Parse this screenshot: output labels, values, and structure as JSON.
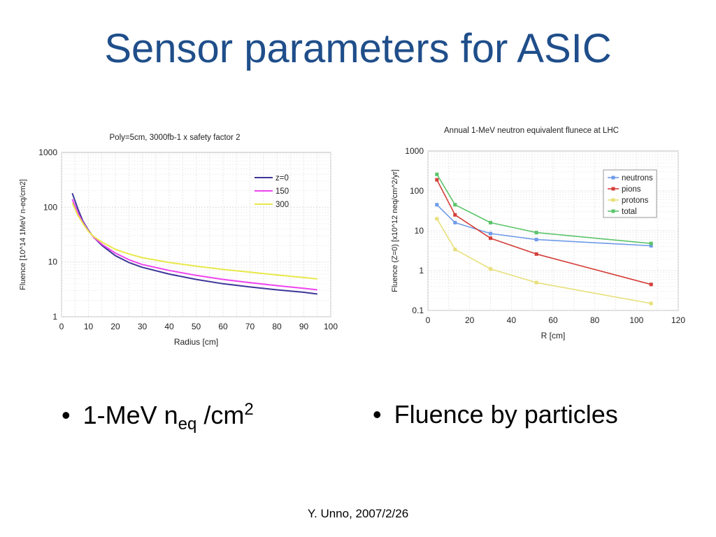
{
  "slide": {
    "title": "Sensor parameters for ASIC",
    "footer": "Y. Unno, 2007/2/26",
    "bullets": [
      {
        "main": "1-MeV n",
        "sub": "eq",
        "after": " /cm",
        "sup": "2"
      },
      {
        "main": "Fluence by particles"
      }
    ]
  },
  "chart_data": [
    {
      "type": "line",
      "title": "Poly=5cm, 3000fb-1 x safety factor 2",
      "xlabel": "Radius [cm]",
      "ylabel": "Fluence [10^14 1MeV n-eq/cm2]",
      "xlim": [
        0,
        100
      ],
      "ylim": [
        1,
        1000
      ],
      "yscale": "log",
      "grid": true,
      "legend_position": "top-right",
      "xticks": [
        "0",
        "10",
        "20",
        "30",
        "40",
        "50",
        "60",
        "70",
        "80",
        "90",
        "100"
      ],
      "yticks": [
        "1",
        "10",
        "100",
        "1000"
      ],
      "series": [
        {
          "name": "z=0",
          "color": "#3c3799",
          "x": [
            4,
            6,
            8,
            10,
            12,
            15,
            20,
            25,
            30,
            40,
            50,
            60,
            70,
            80,
            90,
            95
          ],
          "y": [
            180,
            95,
            55,
            38,
            28,
            20,
            13,
            9.8,
            8,
            6,
            4.8,
            4,
            3.5,
            3.1,
            2.8,
            2.6
          ]
        },
        {
          "name": "150",
          "color": "#ee44ee",
          "x": [
            4,
            6,
            8,
            10,
            12,
            15,
            20,
            25,
            30,
            40,
            50,
            60,
            70,
            80,
            90,
            95
          ],
          "y": [
            140,
            80,
            52,
            37,
            28,
            21,
            14.5,
            11,
            9,
            7,
            5.7,
            4.8,
            4.2,
            3.7,
            3.3,
            3.1
          ]
        },
        {
          "name": "300",
          "color": "#e8e84a",
          "x": [
            4,
            6,
            8,
            10,
            12,
            15,
            20,
            25,
            30,
            40,
            50,
            60,
            70,
            80,
            90,
            95
          ],
          "y": [
            120,
            72,
            50,
            36,
            29,
            23,
            17,
            14,
            12,
            9.8,
            8.4,
            7.3,
            6.5,
            5.8,
            5.2,
            4.9
          ]
        }
      ]
    },
    {
      "type": "line",
      "title": "Annual 1-MeV neutron equivalent flunece at LHC",
      "xlabel": "R [cm]",
      "ylabel": "Fluence (Z=0) [x10^12 neq/cm^2/yr]",
      "xlim": [
        0,
        120
      ],
      "ylim": [
        0.1,
        1000
      ],
      "yscale": "log",
      "grid": true,
      "legend_position": "top-right",
      "xticks": [
        "0",
        "20",
        "40",
        "60",
        "80",
        "100",
        "120"
      ],
      "yticks": [
        "0.1",
        "1",
        "10",
        "100",
        "1000"
      ],
      "series": [
        {
          "name": "neutrons",
          "color": "#6f9be8",
          "x": [
            4.3,
            13,
            30,
            52,
            107
          ],
          "y": [
            45,
            16,
            8.5,
            6,
            4.2
          ]
        },
        {
          "name": "pions",
          "color": "#d43f3a",
          "x": [
            4.3,
            13,
            30,
            52,
            107
          ],
          "y": [
            190,
            25,
            6.5,
            2.6,
            0.45
          ]
        },
        {
          "name": "protons",
          "color": "#e8e07a",
          "x": [
            4.3,
            13,
            30,
            52,
            107
          ],
          "y": [
            20,
            3.4,
            1.1,
            0.5,
            0.15
          ]
        },
        {
          "name": "total",
          "color": "#5bc46a",
          "x": [
            4.3,
            13,
            30,
            52,
            107
          ],
          "y": [
            260,
            45,
            16,
            9,
            4.8
          ]
        }
      ]
    }
  ]
}
